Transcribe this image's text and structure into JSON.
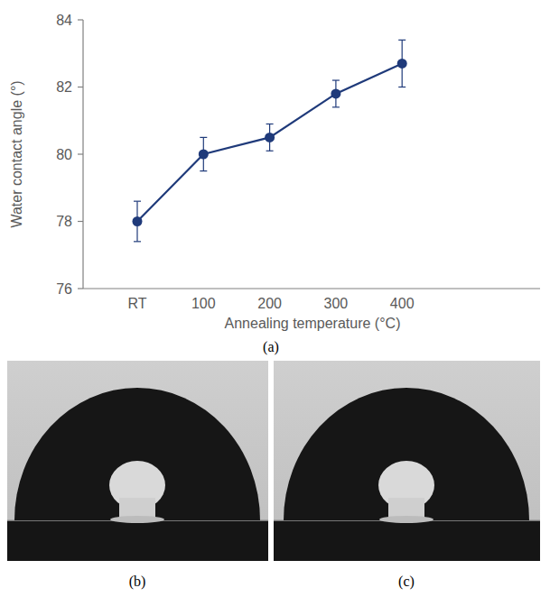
{
  "chart_data": {
    "type": "line",
    "xlabel": "Annealing temperature (°C)",
    "ylabel": "Water contact angle (°)",
    "categories": [
      "RT",
      "100",
      "200",
      "300",
      "400"
    ],
    "values": [
      78.0,
      80.0,
      80.5,
      81.8,
      82.7
    ],
    "error": [
      0.6,
      0.5,
      0.4,
      0.4,
      0.7
    ],
    "color": "#1f3a7a",
    "marker": "circle",
    "ylim": [
      76,
      84
    ],
    "yticks": [
      76,
      78,
      80,
      82,
      84
    ],
    "grid": false
  },
  "captions": [
    "(a)",
    "(b)",
    "(c)"
  ]
}
